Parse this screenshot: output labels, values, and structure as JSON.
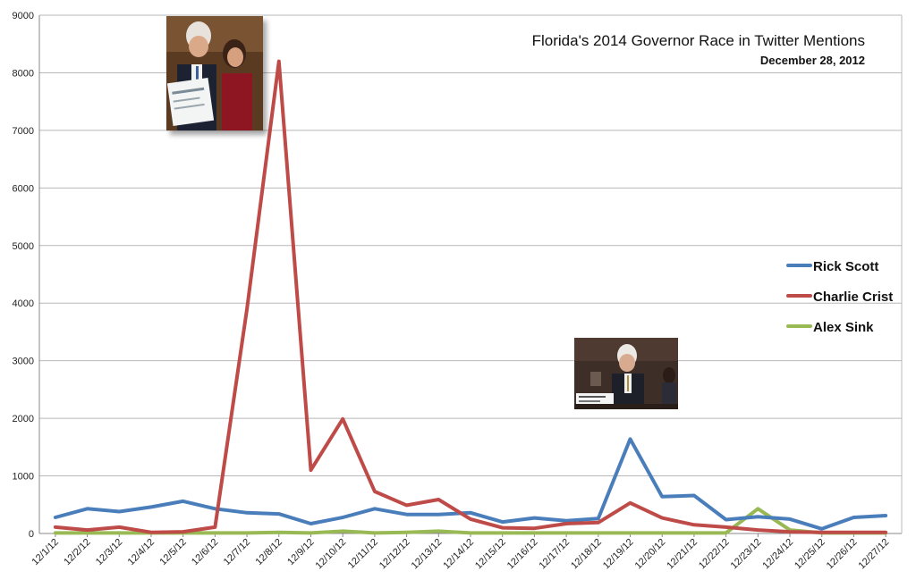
{
  "chart_data": {
    "type": "line",
    "title": "Florida's 2014 Governor Race in Twitter Mentions",
    "subtitle": "December 28, 2012",
    "xlabel": "",
    "ylabel": "",
    "ylim": [
      0,
      9000
    ],
    "yticks": [
      0,
      1000,
      2000,
      3000,
      4000,
      5000,
      6000,
      7000,
      8000,
      9000
    ],
    "grid": true,
    "legend_position": "right",
    "categories": [
      "12/1/12",
      "12/2/12",
      "12/3/12",
      "12/4/12",
      "12/5/12",
      "12/6/12",
      "12/7/12",
      "12/8/12",
      "12/9/12",
      "12/10/12",
      "12/11/12",
      "12/12/12",
      "12/13/12",
      "12/14/12",
      "12/15/12",
      "12/16/12",
      "12/17/12",
      "12/18/12",
      "12/19/12",
      "12/20/12",
      "12/21/12",
      "12/22/12",
      "12/23/12",
      "12/24/12",
      "12/25/12",
      "12/26/12",
      "12/27/12"
    ],
    "series": [
      {
        "name": "Rick Scott",
        "color": "#4a7ebb",
        "values": [
          280,
          430,
          380,
          460,
          560,
          430,
          360,
          340,
          170,
          280,
          430,
          330,
          330,
          360,
          200,
          270,
          220,
          260,
          1640,
          640,
          660,
          240,
          290,
          250,
          80,
          280,
          310
        ]
      },
      {
        "name": "Charlie Crist",
        "color": "#be4b48",
        "values": [
          110,
          60,
          110,
          20,
          30,
          110,
          3900,
          8200,
          1100,
          1990,
          730,
          490,
          590,
          250,
          100,
          90,
          170,
          190,
          530,
          270,
          150,
          110,
          60,
          30,
          20,
          20,
          20
        ]
      },
      {
        "name": "Alex Sink",
        "color": "#98b954",
        "values": [
          10,
          10,
          10,
          10,
          10,
          10,
          10,
          20,
          10,
          40,
          10,
          20,
          40,
          10,
          10,
          10,
          10,
          10,
          10,
          10,
          10,
          10,
          430,
          60,
          10,
          10,
          10
        ]
      }
    ]
  }
}
